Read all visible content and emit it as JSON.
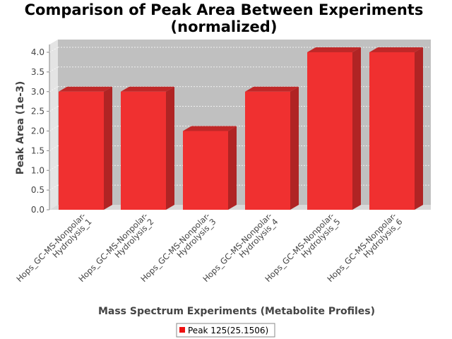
{
  "chart_data": {
    "type": "bar",
    "title_lines": [
      "Comparison of Peak Area Between Experiments",
      "(normalized)"
    ],
    "xlabel": "Mass Spectrum Experiments (Metabolite Profiles)",
    "ylabel": "Peak Area (1e-3)",
    "categories": [
      [
        "Hops_GC-MS-Nonpolar-",
        "Hydrolysis_1"
      ],
      [
        "Hops_GC-MS-Nonpolar-",
        "Hydrolysis_2"
      ],
      [
        "Hops_GC-MS-Nonpolar-",
        "Hydrolysis_3"
      ],
      [
        "Hops_GC-MS-Nonpolar-",
        "Hydrolysis_4"
      ],
      [
        "Hops_GC-MS-Nonpolar-",
        "Hydrolysis_5"
      ],
      [
        "Hops_GC-MS-Nonpolar-",
        "Hydrolysis_6"
      ]
    ],
    "series": [
      {
        "name": "Peak 125(25.1506)",
        "values": [
          3.0,
          3.0,
          2.0,
          3.0,
          4.0,
          4.0
        ]
      }
    ],
    "ylim": [
      0,
      4.0
    ],
    "yticks": [
      "0.0",
      "0.5",
      "1.0",
      "1.5",
      "2.0",
      "2.5",
      "3.0",
      "3.5",
      "4.0"
    ],
    "grid": true,
    "legend_position": "bottom",
    "colors": {
      "bar": "#f03030",
      "bar_top": "#c02828",
      "bar_side": "#b02424",
      "plot_bg": "#c0c0c0",
      "wall": "#e4e4e4"
    }
  }
}
